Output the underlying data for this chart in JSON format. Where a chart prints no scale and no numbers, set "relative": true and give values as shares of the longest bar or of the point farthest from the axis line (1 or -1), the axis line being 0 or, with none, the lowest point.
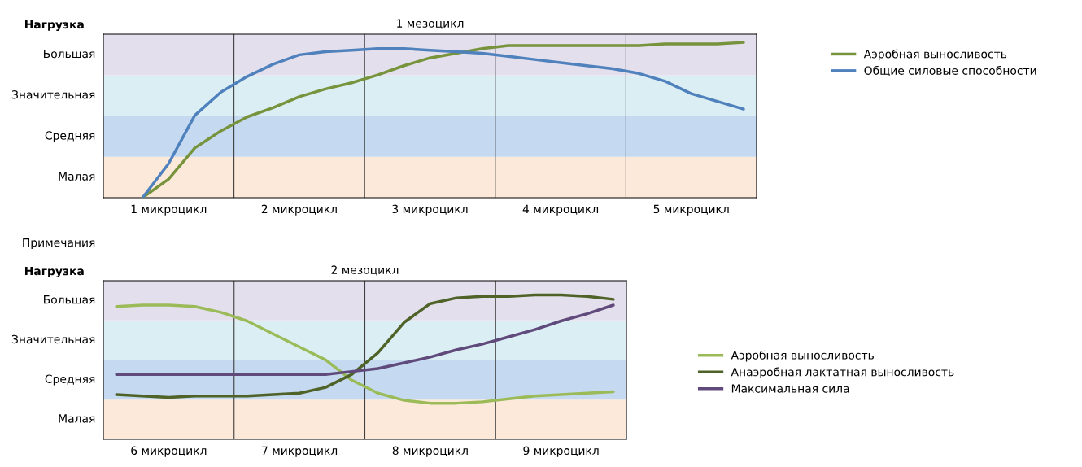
{
  "chart_data": [
    {
      "type": "line",
      "relative": true,
      "title": "1 мезоцикл",
      "ylabel": "Нагрузка",
      "annotations": [
        "Примечания"
      ],
      "categories": [
        null,
        null,
        "1 микроцикл",
        null,
        null,
        null,
        null,
        "2 микроцикл",
        null,
        null,
        null,
        null,
        "3 микроцикл",
        null,
        null,
        null,
        null,
        "4 микроцикл",
        null,
        null,
        null,
        null,
        "5 микроцикл",
        null,
        null
      ],
      "bands": [
        {
          "axis": "y",
          "from": 0,
          "to": 0.263,
          "label": "Малая",
          "color": "#fde9d9"
        },
        {
          "axis": "y",
          "from": 0.263,
          "to": 0.526,
          "label": "Средняя",
          "color": "#c5d9f1"
        },
        {
          "axis": "y",
          "from": 0.526,
          "to": 0.789,
          "label": "Значительная",
          "color": "#dbeef3"
        },
        {
          "axis": "y",
          "from": 0.789,
          "to": 1.053,
          "label": "Большая",
          "color": "#e4dfec"
        }
      ],
      "legend": "top right",
      "series": [
        {
          "name": "Аэробная выносливость",
          "color": "#77933c",
          "values": [
            null,
            0,
            0.12,
            0.32,
            0.43,
            0.52,
            0.58,
            0.65,
            0.7,
            0.74,
            0.79,
            0.85,
            0.9,
            0.93,
            0.96,
            0.98,
            0.98,
            0.98,
            0.98,
            0.98,
            0.98,
            0.99,
            0.99,
            0.99,
            1.0
          ]
        },
        {
          "name": "Общие силовые способности",
          "color": "#4f81bd",
          "values": [
            null,
            0,
            0.22,
            0.53,
            0.68,
            0.78,
            0.86,
            0.92,
            0.94,
            0.95,
            0.96,
            0.96,
            0.95,
            0.94,
            0.93,
            0.91,
            0.89,
            0.87,
            0.85,
            0.83,
            0.8,
            0.75,
            0.67,
            0.62,
            0.57
          ]
        }
      ]
    },
    {
      "type": "line",
      "relative": true,
      "title": "2 мезоцикл",
      "ylabel": "Нагрузка",
      "categories": [
        null,
        null,
        "6 микроцикл",
        null,
        null,
        null,
        null,
        "7 микроцикл",
        null,
        null,
        null,
        null,
        "8 микроцикл",
        null,
        null,
        null,
        null,
        "9 микроцикл",
        null,
        null
      ],
      "bands": [
        {
          "axis": "y",
          "from": 0,
          "to": 0.275,
          "label": "Малая",
          "color": "#fde9d9"
        },
        {
          "axis": "y",
          "from": 0.275,
          "to": 0.549,
          "label": "Средняя",
          "color": "#c5d9f1"
        },
        {
          "axis": "y",
          "from": 0.549,
          "to": 0.824,
          "label": "Значительная",
          "color": "#dbeef3"
        },
        {
          "axis": "y",
          "from": 0.824,
          "to": 1.099,
          "label": "Большая",
          "color": "#e4dfec"
        }
      ],
      "legend": "right",
      "series": [
        {
          "name": "Аэробная выносливость",
          "color": "#9bbb59",
          "values": [
            0.92,
            0.93,
            0.93,
            0.92,
            0.88,
            0.82,
            0.73,
            0.64,
            0.55,
            0.41,
            0.32,
            0.27,
            0.25,
            0.25,
            0.26,
            0.28,
            0.3,
            0.31,
            0.32,
            0.33
          ]
        },
        {
          "name": "Анаэробная лактатная выносливость",
          "color": "#4f6228",
          "values": [
            0.31,
            0.3,
            0.29,
            0.3,
            0.3,
            0.3,
            0.31,
            0.32,
            0.36,
            0.45,
            0.6,
            0.81,
            0.94,
            0.98,
            0.99,
            0.99,
            1.0,
            1.0,
            0.99,
            0.97
          ]
        },
        {
          "name": "Максимальная сила",
          "color": "#604a7b",
          "values": [
            0.45,
            0.45,
            0.45,
            0.45,
            0.45,
            0.45,
            0.45,
            0.45,
            0.45,
            0.47,
            0.49,
            0.53,
            0.57,
            0.62,
            0.66,
            0.71,
            0.76,
            0.82,
            0.87,
            0.93
          ]
        }
      ]
    }
  ]
}
